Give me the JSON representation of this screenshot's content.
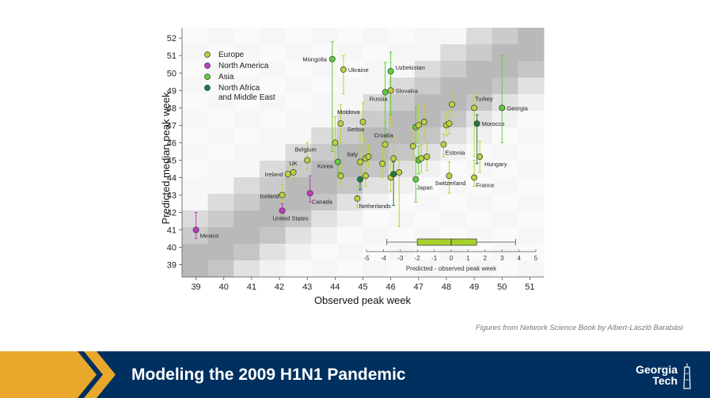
{
  "credit": "Figures from Network Science Book by Albert-László Barabási",
  "footer": {
    "title": "Modeling the 2009 H1N1 Pandemic",
    "logo_line1": "Georgia",
    "logo_line2": "Tech"
  },
  "colors": {
    "Europe": "#bcd23a",
    "North America": "#c339c6",
    "Asia": "#5fd03a",
    "North Africa and Middle East": "#1e7a3e",
    "footer_bg": "#00305f",
    "accent_gold": "#e9a82b",
    "boxplot": "#a6d12c"
  },
  "chart_data": {
    "type": "scatter",
    "title": "",
    "xlabel": "Observed peak week",
    "ylabel": "Predicted median peak week",
    "xlim": [
      38.5,
      51.5
    ],
    "ylim": [
      38.3,
      52.6
    ],
    "xticks": [
      39,
      40,
      41,
      42,
      43,
      44,
      45,
      46,
      47,
      48,
      49,
      50,
      51
    ],
    "yticks": [
      39,
      40,
      41,
      42,
      43,
      44,
      45,
      46,
      47,
      48,
      49,
      50,
      51,
      52
    ],
    "legend": {
      "position": "top-left",
      "entries": [
        {
          "name": "Europe",
          "label_lines": [
            "Europe"
          ]
        },
        {
          "name": "North America",
          "label_lines": [
            "North America"
          ]
        },
        {
          "name": "Asia",
          "label_lines": [
            "Asia"
          ]
        },
        {
          "name": "North Africa and Middle East",
          "label_lines": [
            "North Africa",
            "and Middle East"
          ]
        }
      ]
    },
    "points": [
      {
        "x": 39,
        "y": 41.0,
        "lo": 40.5,
        "hi": 42.0,
        "group": "North America",
        "label": "Mexico"
      },
      {
        "x": 42.1,
        "y": 42.1,
        "lo": 42.0,
        "hi": 42.5,
        "group": "North America",
        "label": "United States"
      },
      {
        "x": 43.1,
        "y": 43.1,
        "lo": 42.6,
        "hi": 44.1,
        "group": "North America",
        "label": "Canada"
      },
      {
        "x": 42.1,
        "y": 43.0,
        "lo": 42.6,
        "hi": 43.6,
        "group": "Europe",
        "label": "Iceland"
      },
      {
        "x": 42.3,
        "y": 44.2,
        "lo": 43.9,
        "hi": 44.6,
        "group": "Europe",
        "label": "Ireland"
      },
      {
        "x": 42.5,
        "y": 44.3,
        "lo": 44.0,
        "hi": 44.7,
        "group": "Europe",
        "label": "UK"
      },
      {
        "x": 43.0,
        "y": 45.0,
        "lo": 44.5,
        "hi": 46.0,
        "group": "Europe",
        "label": "Belgium"
      },
      {
        "x": 44.1,
        "y": 44.9,
        "lo": 44.3,
        "hi": 45.8,
        "group": "Asia",
        "label": "Korea"
      },
      {
        "x": 44.2,
        "y": 44.1,
        "lo": 43.6,
        "hi": 44.7,
        "group": "Europe",
        "label": ""
      },
      {
        "x": 44.0,
        "y": 46.0,
        "lo": 45.0,
        "hi": 47.5,
        "group": "Europe",
        "label": ""
      },
      {
        "x": 44.2,
        "y": 47.1,
        "lo": 46.0,
        "hi": 48.2,
        "group": "Europe",
        "label": "Serbia"
      },
      {
        "x": 43.9,
        "y": 50.8,
        "lo": 45.5,
        "hi": 51.8,
        "group": "Asia",
        "label": "Mongolia"
      },
      {
        "x": 44.3,
        "y": 50.2,
        "lo": 48.8,
        "hi": 51.0,
        "group": "Europe",
        "label": "Ukraine"
      },
      {
        "x": 45.0,
        "y": 47.2,
        "lo": 46.2,
        "hi": 48.3,
        "group": "Europe",
        "label": "Moldova"
      },
      {
        "x": 44.8,
        "y": 42.8,
        "lo": 42.3,
        "hi": 43.5,
        "group": "Europe",
        "label": "Netherlands"
      },
      {
        "x": 44.9,
        "y": 43.9,
        "lo": 43.3,
        "hi": 44.8,
        "group": "North Africa and Middle East",
        "label": ""
      },
      {
        "x": 44.9,
        "y": 44.9,
        "lo": 44.0,
        "hi": 46.5,
        "group": "Europe",
        "label": "Italy"
      },
      {
        "x": 45.1,
        "y": 45.1,
        "lo": 44.3,
        "hi": 46.2,
        "group": "Europe",
        "label": ""
      },
      {
        "x": 45.2,
        "y": 45.2,
        "lo": 44.6,
        "hi": 45.9,
        "group": "Europe",
        "label": ""
      },
      {
        "x": 45.1,
        "y": 44.1,
        "lo": 43.5,
        "hi": 44.8,
        "group": "Europe",
        "label": ""
      },
      {
        "x": 45.7,
        "y": 44.8,
        "lo": 44.0,
        "hi": 46.0,
        "group": "Europe",
        "label": ""
      },
      {
        "x": 45.8,
        "y": 45.9,
        "lo": 45.0,
        "hi": 47.2,
        "group": "Europe",
        "label": "Croatia"
      },
      {
        "x": 45.8,
        "y": 48.9,
        "lo": 45.9,
        "hi": 50.6,
        "group": "Asia",
        "label": "Russia"
      },
      {
        "x": 46.0,
        "y": 49.0,
        "lo": 47.0,
        "hi": 50.2,
        "group": "Europe",
        "label": "Slovakia"
      },
      {
        "x": 46.0,
        "y": 50.1,
        "lo": 47.6,
        "hi": 51.2,
        "group": "Asia",
        "label": "Uzbekistan"
      },
      {
        "x": 46.0,
        "y": 44.0,
        "lo": 43.2,
        "hi": 44.9,
        "group": "Europe",
        "label": ""
      },
      {
        "x": 46.1,
        "y": 45.1,
        "lo": 44.2,
        "hi": 46.3,
        "group": "Europe",
        "label": ""
      },
      {
        "x": 46.1,
        "y": 44.2,
        "lo": 42.4,
        "hi": 44.9,
        "group": "North Africa and Middle East",
        "label": ""
      },
      {
        "x": 46.3,
        "y": 44.3,
        "lo": 41.2,
        "hi": 45.0,
        "group": "Europe",
        "label": ""
      },
      {
        "x": 46.8,
        "y": 45.8,
        "lo": 45.0,
        "hi": 46.9,
        "group": "Europe",
        "label": ""
      },
      {
        "x": 46.9,
        "y": 46.9,
        "lo": 46.0,
        "hi": 48.0,
        "group": "Asia",
        "label": ""
      },
      {
        "x": 47.0,
        "y": 47.0,
        "lo": 46.1,
        "hi": 48.2,
        "group": "Europe",
        "label": ""
      },
      {
        "x": 47.2,
        "y": 47.2,
        "lo": 46.3,
        "hi": 48.2,
        "group": "Europe",
        "label": ""
      },
      {
        "x": 47.0,
        "y": 45.0,
        "lo": 44.2,
        "hi": 45.8,
        "group": "Asia",
        "label": ""
      },
      {
        "x": 47.1,
        "y": 45.1,
        "lo": 44.3,
        "hi": 45.9,
        "group": "Europe",
        "label": ""
      },
      {
        "x": 47.3,
        "y": 45.2,
        "lo": 44.4,
        "hi": 46.0,
        "group": "Europe",
        "label": ""
      },
      {
        "x": 46.9,
        "y": 43.9,
        "lo": 42.6,
        "hi": 45.2,
        "group": "Asia",
        "label": "Japan"
      },
      {
        "x": 47.9,
        "y": 45.9,
        "lo": 45.2,
        "hi": 46.5,
        "group": "Europe",
        "label": "Estonia"
      },
      {
        "x": 48.0,
        "y": 47.0,
        "lo": 46.4,
        "hi": 47.7,
        "group": "Europe",
        "label": ""
      },
      {
        "x": 48.1,
        "y": 47.1,
        "lo": 46.5,
        "hi": 47.8,
        "group": "Europe",
        "label": ""
      },
      {
        "x": 48.2,
        "y": 48.2,
        "lo": 47.5,
        "hi": 48.9,
        "group": "Europe",
        "label": ""
      },
      {
        "x": 48.1,
        "y": 44.1,
        "lo": 43.1,
        "hi": 44.9,
        "group": "Europe",
        "label": "Switzerland"
      },
      {
        "x": 49.0,
        "y": 48.0,
        "lo": 45.2,
        "hi": 48.8,
        "group": "Europe",
        "label": "Turkey"
      },
      {
        "x": 49.0,
        "y": 44.0,
        "lo": 43.5,
        "hi": 45.0,
        "group": "Europe",
        "label": "France"
      },
      {
        "x": 49.2,
        "y": 45.2,
        "lo": 44.3,
        "hi": 46.1,
        "group": "Europe",
        "label": "Hungary"
      },
      {
        "x": 49.1,
        "y": 47.1,
        "lo": 44.8,
        "hi": 47.6,
        "group": "North Africa and Middle East",
        "label": "Morocco"
      },
      {
        "x": 50.0,
        "y": 48.0,
        "lo": 46.0,
        "hi": 51.0,
        "group": "Asia",
        "label": "Georgia"
      }
    ],
    "inset": {
      "type": "boxplot",
      "xlabel": "Predicted - observed peak week",
      "xticks": [
        -5,
        -4,
        -3,
        -2,
        -1,
        0,
        1,
        2,
        3,
        4,
        5
      ],
      "xlim": [
        -5,
        5
      ],
      "whisker_low": -3.8,
      "q1": -2,
      "median": 0,
      "q3": 1.5,
      "whisker_high": 3.8
    }
  }
}
